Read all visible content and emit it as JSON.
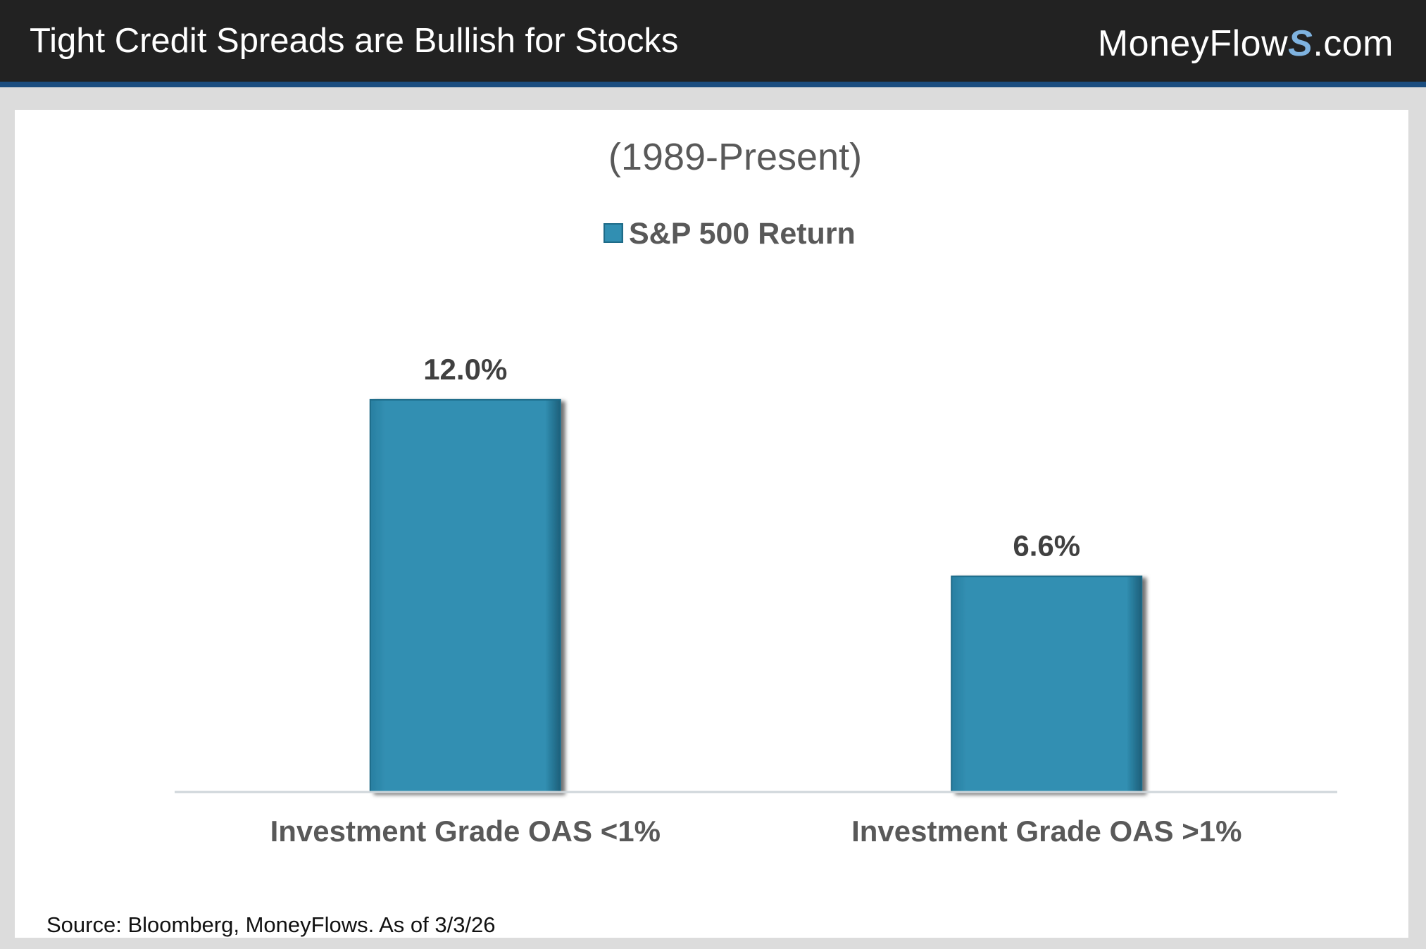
{
  "header": {
    "title": "Tight Credit Spreads are Bullish for Stocks",
    "brand_main": "MoneyFlow",
    "brand_s": "S",
    "brand_suffix": ".com"
  },
  "chart_data": {
    "type": "bar",
    "title": "(1989-Present)",
    "categories": [
      "Investment Grade OAS <1%",
      "Investment Grade OAS >1%"
    ],
    "series": [
      {
        "name": "S&P 500 Return",
        "values": [
          12.0,
          6.6
        ]
      }
    ],
    "data_labels": [
      "12.0%",
      "6.6%"
    ],
    "xlabel": "",
    "ylabel": "",
    "ylim": [
      0,
      14
    ],
    "legend": "top-center",
    "grid": false,
    "colors": {
      "bar": "#318fb2",
      "bar_edge": "#1e6b88",
      "axis": "#cfd6da",
      "label": "#404040"
    }
  },
  "footer": {
    "source": "Source: Bloomberg, MoneyFlows. As of 3/3/26"
  }
}
